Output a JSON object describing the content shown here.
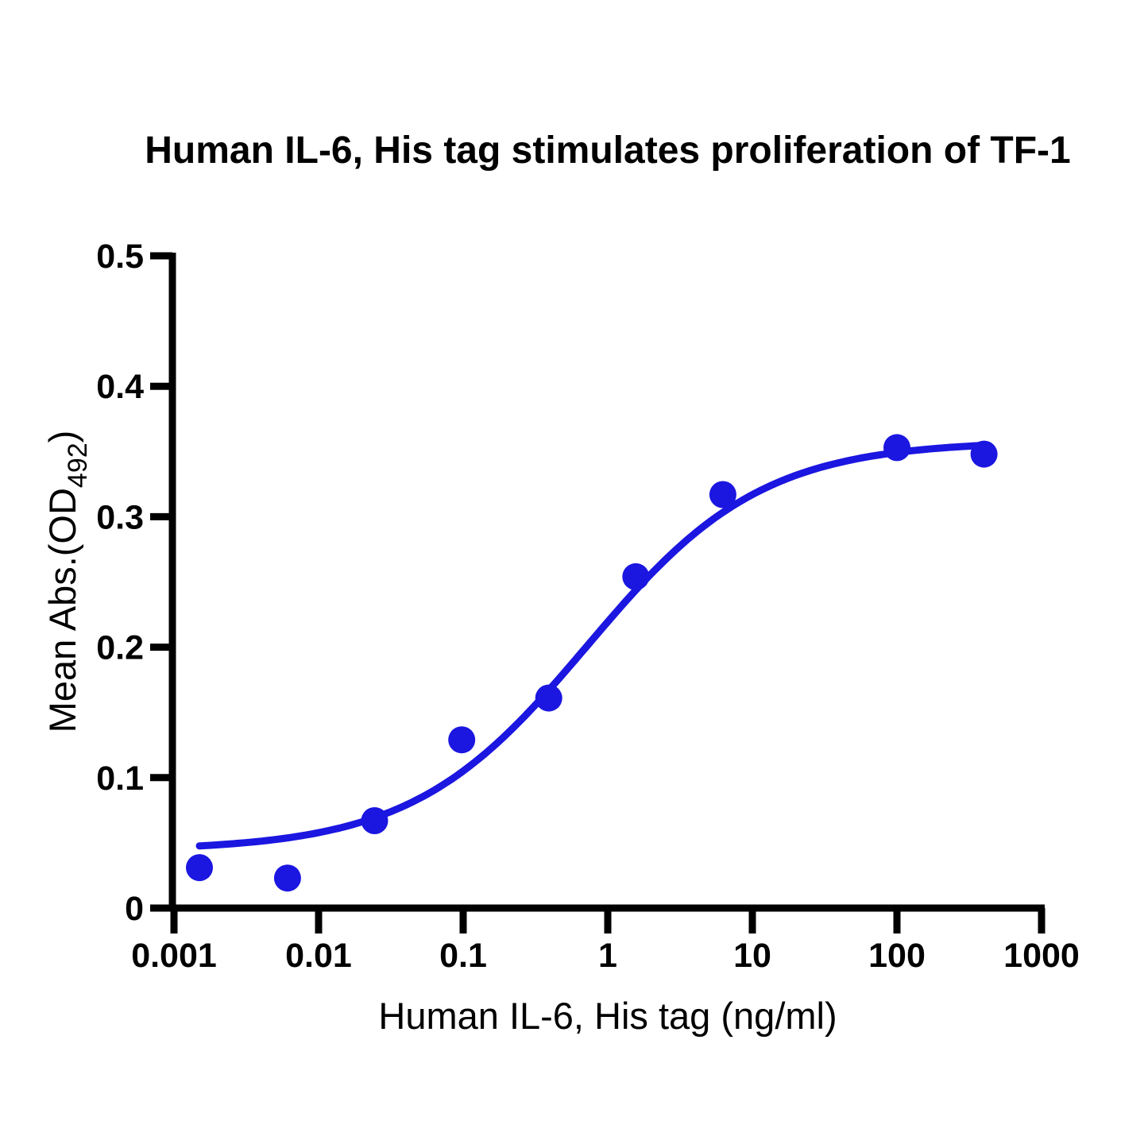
{
  "title": "Human IL-6, His tag stimulates proliferation of TF-1",
  "chart_data": {
    "type": "scatter",
    "title": "Human IL-6, His tag stimulates proliferation of TF-1",
    "xlabel": "Human IL-6, His tag (ng/ml)",
    "ylabel": "Mean Abs.(OD492)",
    "ylabel_parts": {
      "main": "Mean Abs.(OD",
      "sub": "492",
      "end": ")"
    },
    "x_scale": "log10",
    "xlim": [
      0.001,
      1000
    ],
    "ylim": [
      0,
      0.5
    ],
    "x_ticks": [
      0.001,
      0.01,
      0.1,
      1,
      10,
      100,
      1000
    ],
    "x_tick_labels": [
      "0.001",
      "0.01",
      "0.1",
      "1",
      "10",
      "100",
      "1000"
    ],
    "y_ticks": [
      0,
      0.1,
      0.2,
      0.3,
      0.4,
      0.5
    ],
    "y_tick_labels": [
      "0",
      "0.1",
      "0.2",
      "0.3",
      "0.4",
      "0.5"
    ],
    "grid": false,
    "legend": null,
    "accent_color": "#1b16e0",
    "axis_color": "#000000",
    "points": [
      {
        "x": 0.0015,
        "y": 0.031
      },
      {
        "x": 0.0061,
        "y": 0.023
      },
      {
        "x": 0.0244,
        "y": 0.067
      },
      {
        "x": 0.0977,
        "y": 0.129
      },
      {
        "x": 0.3906,
        "y": 0.161
      },
      {
        "x": 1.5625,
        "y": 0.254
      },
      {
        "x": 6.25,
        "y": 0.317
      },
      {
        "x": 100,
        "y": 0.353
      },
      {
        "x": 400,
        "y": 0.348
      }
    ],
    "curve": {
      "model": "4PL",
      "bottom": 0.044,
      "top": 0.358,
      "ec50": 0.72,
      "hill": 0.72,
      "x_start": 0.0015,
      "x_end": 400
    }
  }
}
